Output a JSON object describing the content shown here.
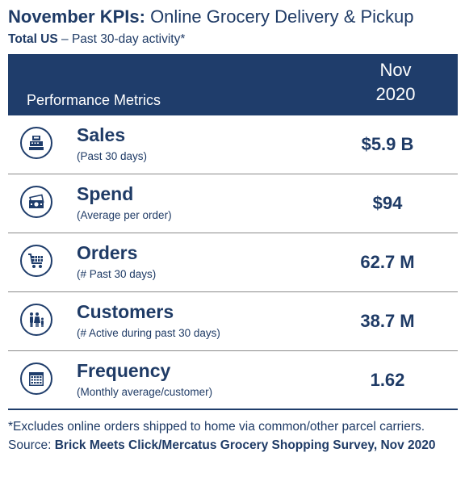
{
  "title": {
    "bold": "November KPIs:",
    "rest": " Online Grocery Delivery & Pickup"
  },
  "subtitle": {
    "bold": "Total US",
    "rest": " – Past 30-day activity*"
  },
  "header": {
    "metric_label": "Performance Metrics",
    "month": "Nov",
    "year": "2020"
  },
  "rows": [
    {
      "icon": "cash-register-icon",
      "title": "Sales",
      "subtitle": "(Past 30 days)",
      "value": "$5.9 B"
    },
    {
      "icon": "money-cash-icon",
      "title": "Spend",
      "subtitle": "(Average per order)",
      "value": "$94"
    },
    {
      "icon": "shopping-cart-icon",
      "title": "Orders",
      "subtitle": "(# Past 30 days)",
      "value": "62.7 M"
    },
    {
      "icon": "family-icon",
      "title": "Customers",
      "subtitle": "(# Active during past 30 days)",
      "value": "38.7 M"
    },
    {
      "icon": "calendar-icon",
      "title": "Frequency",
      "subtitle": "(Monthly average/customer)",
      "value": "1.62"
    }
  ],
  "footnote": {
    "text": "*Excludes online orders shipped to home via common/other parcel carriers. Source: ",
    "source": "Brick Meets Click/Mercatus Grocery Shopping Survey, Nov 2020"
  },
  "colors": {
    "navy": "#1f3d6b",
    "text_navy": "#1f3b66"
  }
}
